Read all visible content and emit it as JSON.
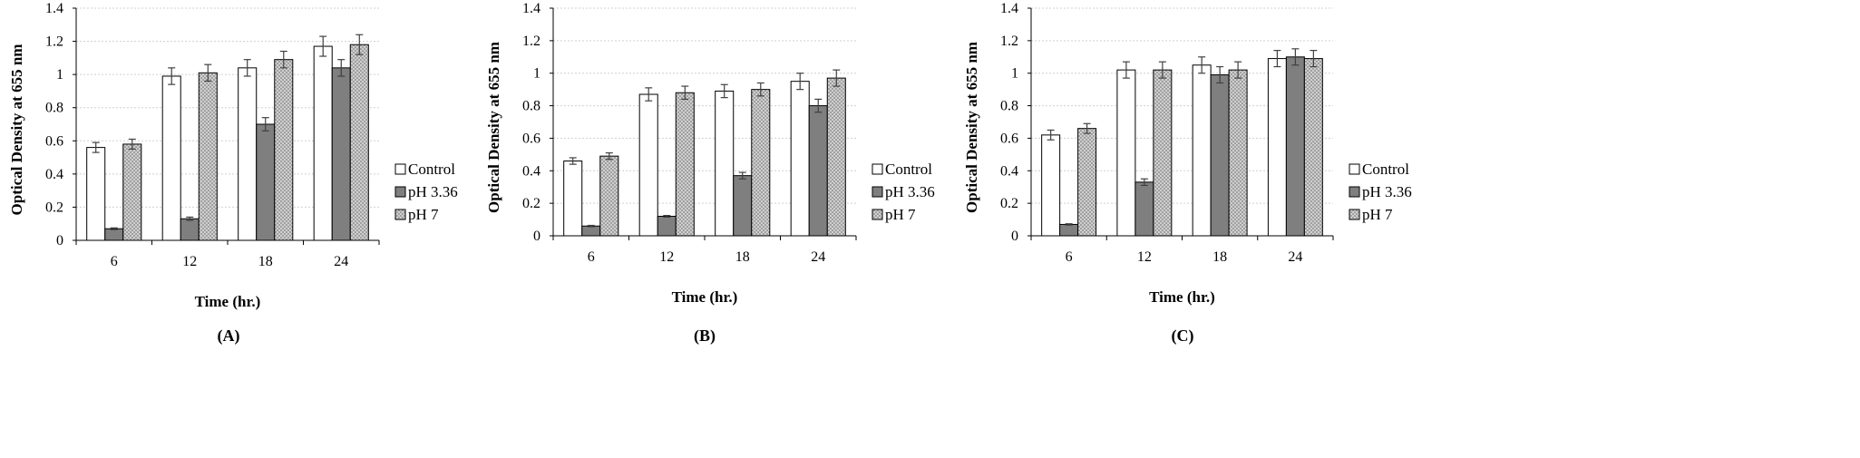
{
  "colors": {
    "control": "#ffffff",
    "ph336": "#7f7f7f",
    "ph7": "#d9d9d9",
    "gridline": "#d0d0d0",
    "axis": "#000000",
    "error_bar": "#404040"
  },
  "chart_data": [
    {
      "type": "bar",
      "panel_label": "(A)",
      "title": "",
      "xlabel": "Time (hr.)",
      "ylabel": "Optical Density at 655 nm",
      "categories": [
        "6",
        "12",
        "18",
        "24"
      ],
      "ylim": [
        0,
        1.4
      ],
      "yticks": [
        "0",
        "0.2",
        "0.4",
        "0.6",
        "0.8",
        "1",
        "1.2",
        "1.4"
      ],
      "grid": true,
      "legend_position": "right",
      "series": [
        {
          "name": "Control",
          "values": [
            0.56,
            0.99,
            1.04,
            1.17
          ],
          "errors": [
            0.03,
            0.05,
            0.05,
            0.06
          ]
        },
        {
          "name": "pH 3.36",
          "values": [
            0.07,
            0.13,
            0.7,
            1.04
          ],
          "errors": [
            0.005,
            0.01,
            0.04,
            0.05
          ]
        },
        {
          "name": "pH 7",
          "values": [
            0.58,
            1.01,
            1.09,
            1.18
          ],
          "errors": [
            0.03,
            0.05,
            0.05,
            0.06
          ]
        }
      ]
    },
    {
      "type": "bar",
      "panel_label": "(B)",
      "title": "",
      "xlabel": "Time (hr.)",
      "ylabel": "Optical Density at 655 nm",
      "categories": [
        "6",
        "12",
        "18",
        "24"
      ],
      "ylim": [
        0,
        1.4
      ],
      "yticks": [
        "0",
        "0.2",
        "0.4",
        "0.6",
        "0.8",
        "1",
        "1.2",
        "1.4"
      ],
      "grid": true,
      "legend_position": "right",
      "series": [
        {
          "name": "Control",
          "values": [
            0.46,
            0.87,
            0.89,
            0.95
          ],
          "errors": [
            0.02,
            0.04,
            0.04,
            0.05
          ]
        },
        {
          "name": "pH 3.36",
          "values": [
            0.06,
            0.12,
            0.37,
            0.8
          ],
          "errors": [
            0.004,
            0.005,
            0.02,
            0.04
          ]
        },
        {
          "name": "pH 7",
          "values": [
            0.49,
            0.88,
            0.9,
            0.97
          ],
          "errors": [
            0.02,
            0.04,
            0.04,
            0.05
          ]
        }
      ]
    },
    {
      "type": "bar",
      "panel_label": "(C)",
      "title": "",
      "xlabel": "Time (hr.)",
      "ylabel": "Optical Density at 655 nm",
      "categories": [
        "6",
        "12",
        "18",
        "24"
      ],
      "ylim": [
        0,
        1.4
      ],
      "yticks": [
        "0",
        "0.2",
        "0.4",
        "0.6",
        "0.8",
        "1",
        "1.2",
        "1.4"
      ],
      "grid": true,
      "legend_position": "right",
      "series": [
        {
          "name": "Control",
          "values": [
            0.62,
            1.02,
            1.05,
            1.09
          ],
          "errors": [
            0.03,
            0.05,
            0.05,
            0.05
          ]
        },
        {
          "name": "pH 3.36",
          "values": [
            0.07,
            0.33,
            0.99,
            1.1
          ],
          "errors": [
            0.004,
            0.02,
            0.05,
            0.05
          ]
        },
        {
          "name": "pH 7",
          "values": [
            0.66,
            1.02,
            1.02,
            1.09
          ],
          "errors": [
            0.03,
            0.05,
            0.05,
            0.05
          ]
        }
      ]
    }
  ]
}
